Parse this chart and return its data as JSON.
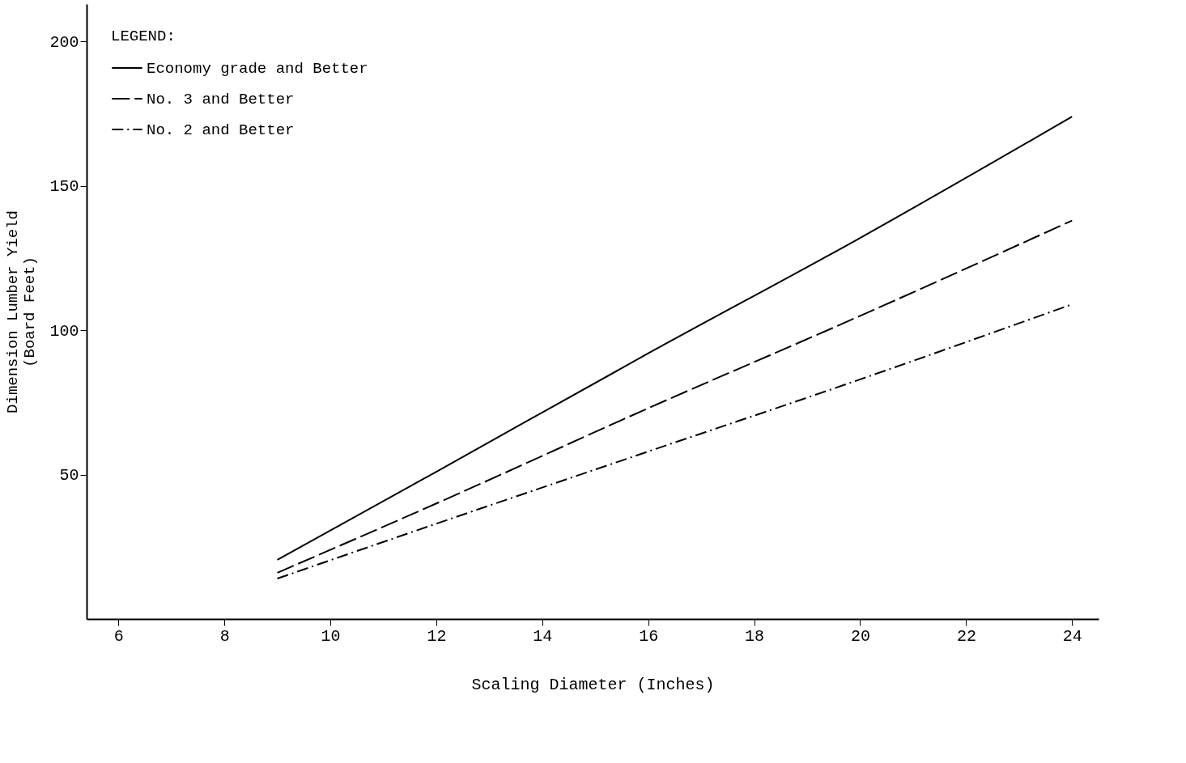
{
  "chart_data": {
    "type": "line",
    "xlabel": "Scaling Diameter (Inches)",
    "ylabel": "Dimension Lumber Yield\n(Board Feet)",
    "legend_title": "LEGEND:",
    "legend": "top left",
    "grid": false,
    "marker": "none",
    "xlim": [
      5.4,
      24.5
    ],
    "ylim": [
      0,
      213
    ],
    "xticks": [
      6,
      8,
      10,
      12,
      14,
      16,
      18,
      20,
      22,
      24
    ],
    "yticks": [
      50,
      100,
      150,
      200
    ],
    "x": [
      9,
      12,
      16,
      20,
      24
    ],
    "series": [
      {
        "name": "Economy grade and Better",
        "color": "#000000",
        "line_style": "solid",
        "values": [
          20.5,
          51,
          92,
          132,
          174
        ]
      },
      {
        "name": "No. 3 and Better",
        "color": "#000000",
        "line_style": "dashed",
        "values": [
          16,
          40,
          73,
          105,
          138
        ]
      },
      {
        "name": "No. 2 and Better",
        "color": "#000000",
        "line_style": "dashdot",
        "values": [
          14,
          33,
          58,
          83,
          109
        ]
      }
    ]
  }
}
